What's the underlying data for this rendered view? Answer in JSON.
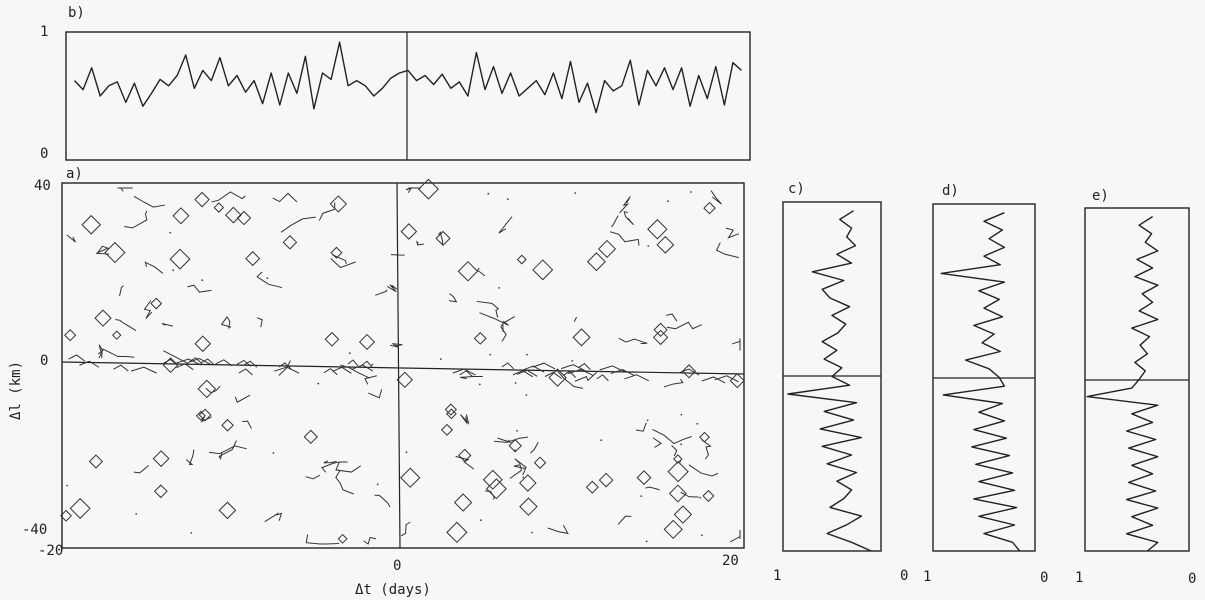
{
  "chart_data": [
    {
      "panel": "a)",
      "type": "contour",
      "xlabel": "Δt (days)",
      "ylabel": "Δl (km)",
      "xlim": [
        -20,
        20
      ],
      "ylim": [
        -40,
        40
      ],
      "x_ticks": [
        "-20",
        "0",
        "20"
      ],
      "y_ticks": [
        "40",
        "0",
        "-40"
      ]
    },
    {
      "panel": "b)",
      "type": "line",
      "xlim": [
        -20,
        20
      ],
      "ylim": [
        0,
        1
      ],
      "y_ticks": [
        "1",
        "0"
      ],
      "x": [
        -19.5,
        -19,
        -18.5,
        -18,
        -17.5,
        -17,
        -16.5,
        -16,
        -15.5,
        -15,
        -14.5,
        -14,
        -13.5,
        -13,
        -12.5,
        -12,
        -11.5,
        -11,
        -10.5,
        -10,
        -9.5,
        -9,
        -8.5,
        -8,
        -7.5,
        -7,
        -6.5,
        -6,
        -5.5,
        -5,
        -4.5,
        -4,
        -3.5,
        -3,
        -2.5,
        -2,
        -1.5,
        -1,
        -0.5,
        0,
        0.5,
        1,
        1.5,
        2,
        2.5,
        3,
        3.5,
        4,
        4.5,
        5,
        5.5,
        6,
        6.5,
        7,
        7.5,
        8,
        8.5,
        9,
        9.5,
        10,
        10.5,
        11,
        11.5,
        12,
        12.5,
        13,
        13.5,
        14,
        14.5,
        15,
        15.5,
        16,
        16.5,
        17,
        17.5,
        18,
        18.5,
        19,
        19.5
      ],
      "values": [
        0.62,
        0.55,
        0.72,
        0.5,
        0.58,
        0.61,
        0.45,
        0.6,
        0.42,
        0.52,
        0.63,
        0.58,
        0.66,
        0.82,
        0.56,
        0.7,
        0.62,
        0.8,
        0.58,
        0.66,
        0.53,
        0.62,
        0.44,
        0.68,
        0.43,
        0.68,
        0.52,
        0.81,
        0.4,
        0.68,
        0.63,
        0.92,
        0.58,
        0.62,
        0.58,
        0.5,
        0.56,
        0.64,
        0.68,
        0.7,
        0.62,
        0.66,
        0.59,
        0.67,
        0.56,
        0.61,
        0.5,
        0.84,
        0.55,
        0.73,
        0.52,
        0.68,
        0.5,
        0.56,
        0.62,
        0.51,
        0.68,
        0.48,
        0.77,
        0.45,
        0.6,
        0.37,
        0.62,
        0.54,
        0.58,
        0.78,
        0.43,
        0.7,
        0.58,
        0.72,
        0.55,
        0.72,
        0.42,
        0.66,
        0.48,
        0.73,
        0.43,
        0.76,
        0.7
      ]
    },
    {
      "panel": "c)",
      "type": "line",
      "orientation": "vertical",
      "xlim": [
        1,
        0
      ],
      "ylim": [
        -40,
        40
      ],
      "x_ticks": [
        "1",
        "0"
      ],
      "y": [
        38,
        36,
        34,
        32,
        30,
        28,
        26,
        24,
        22,
        20,
        18,
        16,
        14,
        12,
        10,
        8,
        6,
        4,
        2,
        0,
        -2,
        -4,
        -6,
        -8,
        -10,
        -12,
        -14,
        -16,
        -18,
        -20,
        -22,
        -24,
        -26,
        -28,
        -30,
        -32,
        -34,
        -36,
        -38,
        -40
      ],
      "values": [
        0.28,
        0.42,
        0.3,
        0.35,
        0.26,
        0.45,
        0.3,
        0.7,
        0.38,
        0.6,
        0.52,
        0.32,
        0.5,
        0.36,
        0.44,
        0.6,
        0.45,
        0.58,
        0.4,
        0.5,
        0.32,
        0.95,
        0.25,
        0.58,
        0.28,
        0.62,
        0.2,
        0.6,
        0.3,
        0.55,
        0.25,
        0.45,
        0.3,
        0.38,
        0.52,
        0.2,
        0.35,
        0.55,
        0.3,
        0.1
      ]
    },
    {
      "panel": "d)",
      "type": "line",
      "orientation": "vertical",
      "xlim": [
        1,
        0
      ],
      "ylim": [
        -40,
        40
      ],
      "x_ticks": [
        "1",
        "0"
      ],
      "y": [
        38,
        36,
        34,
        32,
        30,
        28,
        26,
        24,
        22,
        20,
        18,
        16,
        14,
        12,
        10,
        8,
        6,
        4,
        2,
        0,
        -2,
        -4,
        -6,
        -8,
        -10,
        -12,
        -14,
        -16,
        -18,
        -20,
        -22,
        -24,
        -26,
        -28,
        -30,
        -32,
        -34,
        -36,
        -38,
        -40
      ],
      "values": [
        0.3,
        0.5,
        0.32,
        0.45,
        0.3,
        0.5,
        0.34,
        0.92,
        0.3,
        0.55,
        0.35,
        0.5,
        0.32,
        0.6,
        0.4,
        0.52,
        0.34,
        0.68,
        0.45,
        0.35,
        0.3,
        0.9,
        0.32,
        0.55,
        0.3,
        0.6,
        0.28,
        0.62,
        0.25,
        0.58,
        0.22,
        0.55,
        0.2,
        0.6,
        0.18,
        0.55,
        0.2,
        0.5,
        0.22,
        0.15
      ]
    },
    {
      "panel": "e)",
      "type": "line",
      "orientation": "vertical",
      "xlim": [
        1,
        0
      ],
      "ylim": [
        -40,
        40
      ],
      "x_ticks": [
        "1",
        "0"
      ],
      "y": [
        38,
        36,
        34,
        32,
        30,
        28,
        26,
        24,
        22,
        20,
        18,
        16,
        14,
        12,
        10,
        8,
        6,
        4,
        2,
        0,
        -2,
        -4,
        -6,
        -8,
        -10,
        -12,
        -14,
        -16,
        -18,
        -20,
        -22,
        -24,
        -26,
        -28,
        -30,
        -32,
        -34,
        -36,
        -38,
        -40
      ],
      "values": [
        0.35,
        0.48,
        0.36,
        0.42,
        0.3,
        0.5,
        0.35,
        0.52,
        0.3,
        0.45,
        0.35,
        0.48,
        0.3,
        0.55,
        0.38,
        0.47,
        0.4,
        0.52,
        0.42,
        0.48,
        0.55,
        0.98,
        0.3,
        0.55,
        0.35,
        0.6,
        0.32,
        0.58,
        0.3,
        0.55,
        0.35,
        0.58,
        0.32,
        0.6,
        0.3,
        0.55,
        0.35,
        0.6,
        0.3,
        0.4
      ]
    }
  ]
}
